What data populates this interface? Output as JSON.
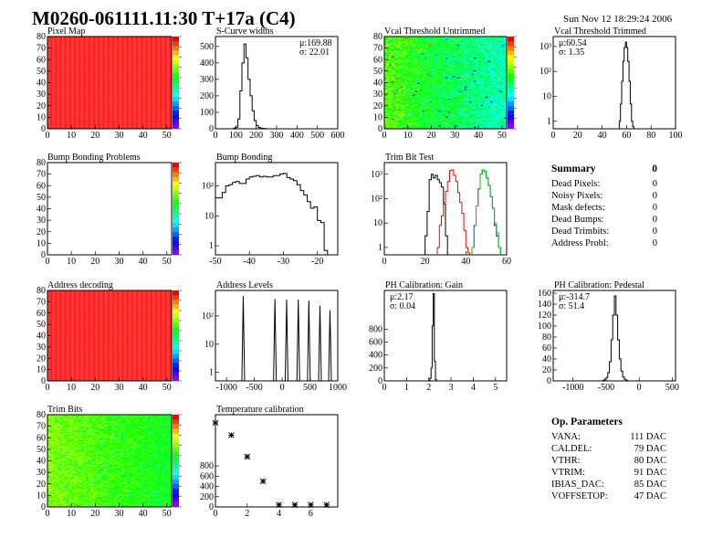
{
  "header": {
    "title": "M0260-061111.11:30 T+17a (C4)",
    "date": "Sun Nov 12 18:29:24 2006"
  },
  "summary": {
    "title": "Summary",
    "total": "0",
    "rows": [
      {
        "label": "Dead Pixels:",
        "value": "0"
      },
      {
        "label": "Noisy Pixels:",
        "value": "0"
      },
      {
        "label": "Mask defects:",
        "value": "0"
      },
      {
        "label": "Dead Bumps:",
        "value": "0"
      },
      {
        "label": "Dead Trimbits:",
        "value": "0"
      },
      {
        "label": "Address Probl:",
        "value": "0"
      }
    ]
  },
  "op_parameters": {
    "title": "Op. Parameters",
    "rows": [
      {
        "label": "VANA:",
        "value": "111 DAC"
      },
      {
        "label": "CALDEL:",
        "value": "79 DAC"
      },
      {
        "label": "VTHR:",
        "value": "80 DAC"
      },
      {
        "label": "VTRIM:",
        "value": "91 DAC"
      },
      {
        "label": "IBIAS_DAC:",
        "value": "85 DAC"
      },
      {
        "label": "VOFFSETOP:",
        "value": "47 DAC"
      }
    ]
  },
  "chart_data": [
    {
      "type": "heatmap",
      "title": "Pixel Map",
      "xlim": [
        0,
        52
      ],
      "ylim": [
        0,
        80
      ],
      "xticks": [
        0,
        10,
        20,
        30,
        40,
        50
      ],
      "yticks": [
        0,
        10,
        20,
        30,
        40,
        50,
        60,
        70,
        80
      ],
      "pattern": "uniform-max",
      "palette": "rainbow"
    },
    {
      "type": "bar",
      "title": "S-Curve widths",
      "xlim": [
        0,
        600
      ],
      "ylim": [
        0,
        560
      ],
      "xticks": [
        0,
        100,
        200,
        300,
        400,
        500,
        600
      ],
      "yticks": [
        0,
        100,
        200,
        300,
        400,
        500
      ],
      "stats": [
        "μ:169.88",
        "σ: 22.01"
      ],
      "series": [
        {
          "color": "#000000",
          "bin_start": 90,
          "bin_width": 10,
          "values": [
            5,
            10,
            60,
            230,
            400,
            515,
            430,
            300,
            200,
            110,
            50,
            20,
            8,
            4,
            2,
            1
          ]
        }
      ]
    },
    {
      "type": "heatmap",
      "title": "Vcal Threshold Untrimmed",
      "xlim": [
        0,
        52
      ],
      "ylim": [
        0,
        80
      ],
      "zlim": [
        90,
        125
      ],
      "xticks": [
        0,
        10,
        20,
        30,
        40,
        50
      ],
      "yticks": [
        0,
        10,
        20,
        30,
        40,
        50,
        60,
        70,
        80
      ],
      "pattern": "random",
      "palette": "rainbow"
    },
    {
      "type": "bar",
      "title": "Vcal Threshold Trimmed",
      "xlim": [
        0,
        100
      ],
      "ylim": [
        0.5,
        2500
      ],
      "ylog": true,
      "xticks": [
        0,
        20,
        40,
        60,
        80,
        100
      ],
      "yticks": [
        1,
        10,
        100,
        1000
      ],
      "ytick_labels": [
        "1",
        "10",
        "10²",
        "10³"
      ],
      "stats": [
        "μ:60.54",
        "σ: 1.35"
      ],
      "series": [
        {
          "color": "#000000",
          "bin_start": 54,
          "bin_width": 1,
          "values": [
            1,
            5,
            40,
            250,
            900,
            1500,
            900,
            250,
            40,
            5,
            1,
            0.6
          ]
        }
      ]
    },
    {
      "type": "heatmap",
      "title": "Bump Bonding Problems",
      "xlim": [
        0,
        52
      ],
      "ylim": [
        0,
        80
      ],
      "xticks": [
        0,
        10,
        20,
        30,
        40,
        50
      ],
      "yticks": [
        0,
        10,
        20,
        30,
        40,
        50,
        60,
        70,
        80
      ],
      "pattern": "empty",
      "palette": "rainbow"
    },
    {
      "type": "bar",
      "title": "Bump Bonding",
      "xlim": [
        -50,
        -14
      ],
      "ylim": [
        0.5,
        600
      ],
      "ylog": true,
      "xticks": [
        -50,
        -40,
        -30,
        -20
      ],
      "yticks": [
        1,
        10,
        100
      ],
      "ytick_labels": [
        "1",
        "10",
        "10²"
      ],
      "series": [
        {
          "color": "#000000",
          "bin_start": -50,
          "bin_width": 1,
          "values": [
            40,
            40,
            60,
            100,
            110,
            130,
            140,
            120,
            120,
            170,
            200,
            210,
            220,
            200,
            210,
            200,
            200,
            220,
            220,
            250,
            260,
            190,
            170,
            150,
            110,
            70,
            50,
            30,
            18,
            20,
            7,
            6,
            0.7
          ]
        }
      ]
    },
    {
      "type": "bar",
      "title": "Trim Bit Test",
      "xlim": [
        0,
        60
      ],
      "ylim": [
        0.5,
        3000
      ],
      "ylog": true,
      "xticks": [
        0,
        20,
        40,
        60
      ],
      "yticks": [
        1,
        10,
        100,
        1000
      ],
      "ytick_labels": [
        "1",
        "10",
        "10²",
        "10³"
      ],
      "series": [
        {
          "color": "#000000",
          "bin_start": 20,
          "bin_width": 1,
          "values": [
            3,
            30,
            600,
            1000,
            700,
            900,
            600,
            450,
            300,
            60,
            3
          ]
        },
        {
          "color": "#ff0000",
          "bin_start": 26,
          "bin_width": 1,
          "values": [
            1,
            8,
            20,
            70,
            200,
            500,
            1400,
            1500,
            900,
            500,
            180,
            70,
            25,
            5,
            1,
            0.6
          ]
        },
        {
          "color": "#0000ff",
          "bin_start": 43,
          "bin_width": 1,
          "values": [
            1,
            8,
            50,
            250,
            1000,
            1500,
            1300,
            700,
            350,
            120,
            40,
            8,
            3,
            1
          ]
        },
        {
          "color": "#00cc00",
          "bin_start": 43,
          "bin_width": 1,
          "values": [
            1,
            8,
            50,
            250,
            1000,
            1500,
            1300,
            700,
            350,
            120,
            40,
            10,
            4,
            1
          ]
        }
      ]
    },
    {
      "type": "heatmap",
      "title": "Address decoding",
      "xlim": [
        0,
        52
      ],
      "ylim": [
        0,
        80
      ],
      "xticks": [
        0,
        10,
        20,
        30,
        40,
        50
      ],
      "yticks": [
        0,
        10,
        20,
        30,
        40,
        50,
        60,
        70,
        80
      ],
      "pattern": "uniform-max",
      "palette": "rainbow"
    },
    {
      "type": "bar",
      "title": "Address Levels",
      "xlim": [
        -1200,
        1000
      ],
      "ylim": [
        0.5,
        800
      ],
      "ylog": true,
      "xticks": [
        -1000,
        -500,
        0,
        500,
        1000
      ],
      "yticks": [
        1,
        10,
        100
      ],
      "ytick_labels": [
        "1",
        "10",
        "10²"
      ],
      "peaks": [
        {
          "x": -700,
          "y": 500
        },
        {
          "x": -130,
          "y": 400
        },
        {
          "x": 80,
          "y": 380
        },
        {
          "x": 290,
          "y": 380
        },
        {
          "x": 480,
          "y": 350
        },
        {
          "x": 680,
          "y": 230
        },
        {
          "x": 860,
          "y": 160
        }
      ]
    },
    {
      "type": "bar",
      "title": "PH Calibration: Gain",
      "xlim": [
        0,
        5.5
      ],
      "ylim": [
        0,
        1400
      ],
      "xticks": [
        0,
        1,
        2,
        3,
        4,
        5
      ],
      "yticks": [
        0,
        200,
        400,
        600,
        800
      ],
      "stats": [
        "μ:2.17",
        "σ: 0.04"
      ],
      "series": [
        {
          "color": "#000000",
          "bin_start": 2.0,
          "bin_width": 0.05,
          "values": [
            5,
            40,
            200,
            850,
            1350,
            300,
            20
          ]
        }
      ]
    },
    {
      "type": "bar",
      "title": "PH Calibration: Pedestal",
      "xlim": [
        -1300,
        550
      ],
      "ylim": [
        0,
        165
      ],
      "xticks": [
        -1000,
        -500,
        0,
        500
      ],
      "yticks": [
        0,
        20,
        40,
        60,
        80,
        100,
        120,
        140,
        160
      ],
      "stats": [
        "μ:-314.7",
        "σ: 51.4"
      ],
      "series": [
        {
          "color": "#000000",
          "bin_start": -550,
          "bin_width": 25,
          "values": [
            1,
            3,
            6,
            15,
            35,
            75,
            120,
            155,
            120,
            75,
            40,
            18,
            7,
            3,
            1,
            0
          ]
        }
      ]
    },
    {
      "type": "heatmap",
      "title": "Trim Bits",
      "xlim": [
        0,
        52
      ],
      "ylim": [
        0,
        80
      ],
      "xticks": [
        0,
        10,
        20,
        30,
        40,
        50
      ],
      "yticks": [
        0,
        10,
        20,
        30,
        40,
        50,
        60,
        70,
        80
      ],
      "pattern": "random",
      "palette": "rainbow"
    },
    {
      "type": "scatter",
      "title": "Temperature calibration",
      "xlim": [
        0,
        7.7
      ],
      "ylim": [
        0,
        1800
      ],
      "xticks": [
        0,
        2,
        4,
        6
      ],
      "yticks": [
        0,
        200,
        400,
        600,
        800
      ],
      "x": [
        0,
        1,
        2,
        3,
        4,
        5,
        6,
        7
      ],
      "y": [
        1640,
        1400,
        980,
        500,
        40,
        40,
        40,
        40
      ]
    }
  ]
}
